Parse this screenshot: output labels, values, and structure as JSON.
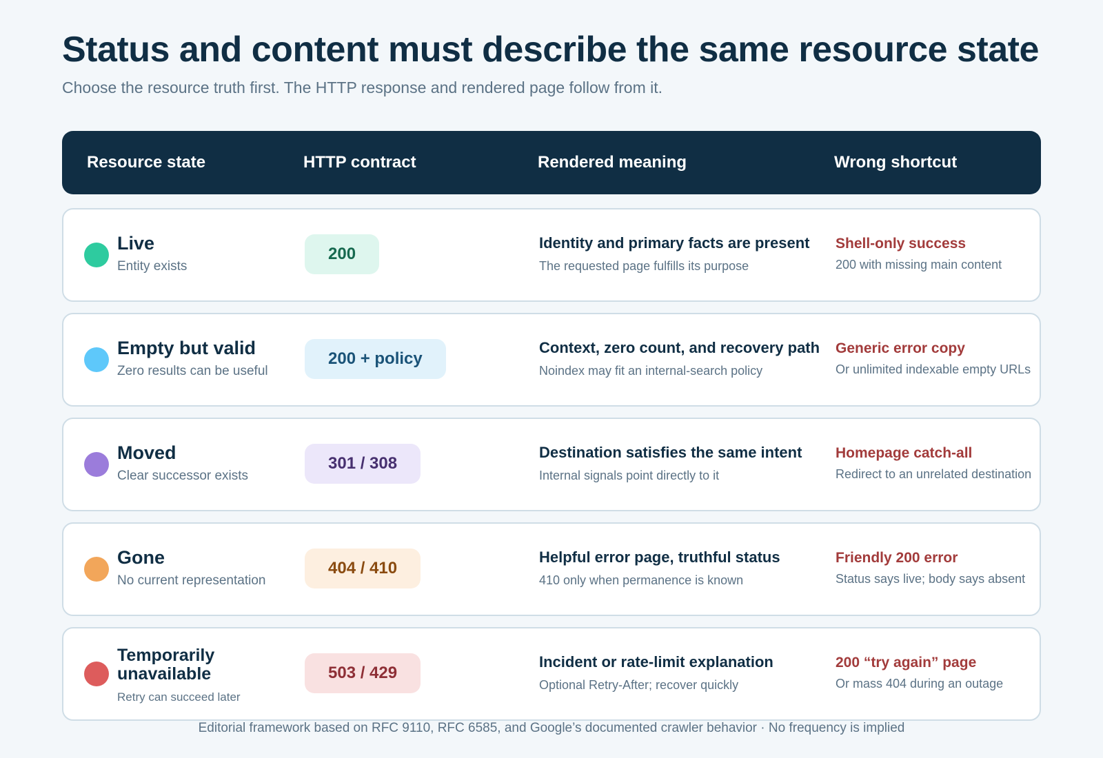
{
  "title": "Status and content must describe the same resource state",
  "subtitle": "Choose the resource truth first. The HTTP response and rendered page follow from it.",
  "header": {
    "col1": "Resource state",
    "col2": "HTTP contract",
    "col3": "Rendered meaning",
    "col4": "Wrong shortcut"
  },
  "rows": [
    {
      "state": "Live",
      "state_sub": "Entity exists",
      "dot_color": "#2ecb9f",
      "status": "200",
      "status_bg": "#def6ee",
      "status_color": "#16694f",
      "meaning": "Identity and primary facts are present",
      "meaning_sub": "The requested page fulfills its purpose",
      "wrong": "Shell-only success",
      "wrong_sub": "200 with missing main content"
    },
    {
      "state": "Empty but valid",
      "state_sub": "Zero results can be useful",
      "dot_color": "#5ec8fa",
      "status": "200 + policy",
      "status_bg": "#e1f2fb",
      "status_color": "#1a5378",
      "meaning": "Context, zero count, and recovery path",
      "meaning_sub": "Noindex may fit an internal-search policy",
      "wrong": "Generic error copy",
      "wrong_sub": "Or unlimited indexable empty URLs"
    },
    {
      "state": "Moved",
      "state_sub": "Clear successor exists",
      "dot_color": "#9b7cdb",
      "status": "301 / 308",
      "status_bg": "#ece7fa",
      "status_color": "#47306f",
      "meaning": "Destination satisfies the same intent",
      "meaning_sub": "Internal signals point directly to it",
      "wrong": "Homepage catch-all",
      "wrong_sub": "Redirect to an unrelated destination"
    },
    {
      "state": "Gone",
      "state_sub": "No current representation",
      "dot_color": "#f2a65a",
      "status": "404 / 410",
      "status_bg": "#fdefe0",
      "status_color": "#8a4b10",
      "meaning": "Helpful error page, truthful status",
      "meaning_sub": "410 only when permanence is known",
      "wrong": "Friendly 200 error",
      "wrong_sub": "Status says live; body says absent"
    },
    {
      "state": "Temporarily unavailable",
      "state_sub": "Retry can succeed later",
      "dot_color": "#dd5c5c",
      "status": "503 / 429",
      "status_bg": "#f9e1e1",
      "status_color": "#8e2f36",
      "meaning": "Incident or rate-limit explanation",
      "meaning_sub": "Optional Retry-After; recover quickly",
      "wrong": "200 “try again” page",
      "wrong_sub": "Or mass 404 during an outage"
    }
  ],
  "footer": "Editorial framework based on RFC 9110, RFC 6585, and Google’s documented crawler behavior · No frequency is implied"
}
